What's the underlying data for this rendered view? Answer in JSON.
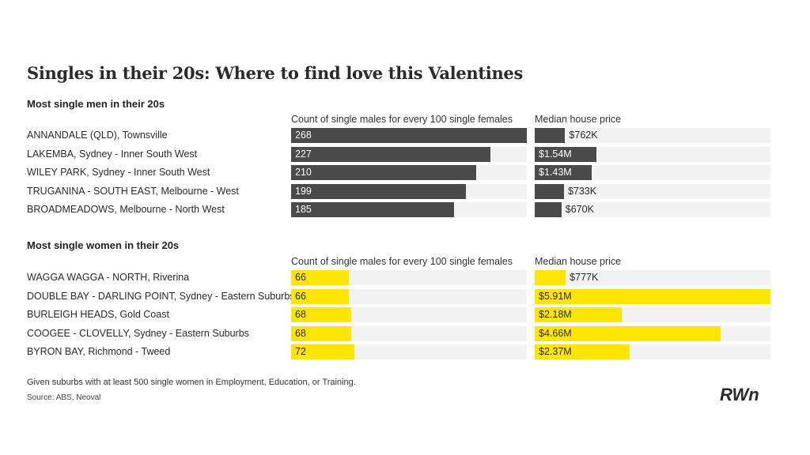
{
  "title": "Singles in their 20s: Where to find love this Valentines",
  "col_heads": {
    "count": "Count of single males for every 100 single females",
    "price": "Median house price"
  },
  "chart_data": [
    {
      "type": "bar",
      "title": "Most single men in their 20s",
      "categories": [
        "ANNANDALE (QLD), Townsville",
        "LAKEMBA, Sydney - Inner South West",
        "WILEY PARK, Sydney - Inner South West",
        "TRUGANINA - SOUTH EAST, Melbourne - West",
        "BROADMEADOWS, Melbourne - North West"
      ],
      "series": [
        {
          "name": "Count of single males for every 100 single females",
          "values": [
            268,
            227,
            210,
            199,
            185
          ],
          "labels": [
            "268",
            "227",
            "210",
            "199",
            "185"
          ]
        },
        {
          "name": "Median house price",
          "values": [
            762000,
            1540000,
            1430000,
            733000,
            670000
          ],
          "labels": [
            "$762K",
            "$1.54M",
            "$1.43M",
            "$733K",
            "$670K"
          ]
        }
      ],
      "color": "#4a4a4a"
    },
    {
      "type": "bar",
      "title": "Most single women in their 20s",
      "categories": [
        "WAGGA WAGGA - NORTH, Riverina",
        "DOUBLE BAY - DARLING POINT, Sydney - Eastern Suburbs",
        "BURLEIGH HEADS, Gold Coast",
        "COOGEE - CLOVELLY, Sydney - Eastern Suburbs",
        "BYRON BAY, Richmond - Tweed"
      ],
      "series": [
        {
          "name": "Count of single males for every 100 single females",
          "values": [
            66,
            66,
            68,
            68,
            72
          ],
          "labels": [
            "66",
            "66",
            "68",
            "68",
            "72"
          ]
        },
        {
          "name": "Median house price",
          "values": [
            777000,
            5910000,
            2180000,
            4660000,
            2370000
          ],
          "labels": [
            "$777K",
            "$5.91M",
            "$2.18M",
            "$4.66M",
            "$2.37M"
          ]
        }
      ],
      "color": "#ffe600"
    }
  ],
  "footnote": "Given suburbs with at least 500 single women in Employment, Education, or Training.",
  "source": "Source: ABS, Neoval",
  "logo_text": "RWn"
}
